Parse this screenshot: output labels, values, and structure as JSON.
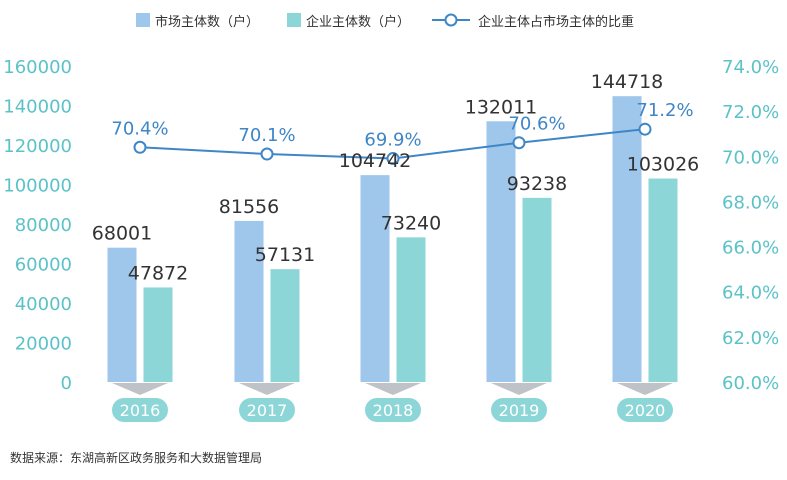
{
  "colors": {
    "market_bar": "#9fc6eb",
    "enterprise_bar": "#8dd6d8",
    "ratio_line": "#3f86c6",
    "axis_text": "#5bc2c7",
    "label_text": "#333333",
    "year_pill": "#8dd6d8",
    "chevron": "#bfc3c7"
  },
  "legend": {
    "market": "市场主体数（户）",
    "enterprise": "企业主体数（户）",
    "ratio": "企业主体占市场主体的比重"
  },
  "source": "数据来源：东湖高新区政务服务和大数据管理局",
  "chart_data": {
    "type": "bar",
    "categories": [
      "2016",
      "2017",
      "2018",
      "2019",
      "2020"
    ],
    "series": [
      {
        "name": "市场主体数（户）",
        "type": "bar",
        "axis": "left",
        "values": [
          68001,
          81556,
          104742,
          132011,
          144718
        ],
        "labels": [
          "68001",
          "81556",
          "104742",
          "132011",
          "144718"
        ]
      },
      {
        "name": "企业主体数（户）",
        "type": "bar",
        "axis": "left",
        "values": [
          47872,
          57131,
          73240,
          93238,
          103026
        ],
        "labels": [
          "47872",
          "57131",
          "73240",
          "93238",
          "103026"
        ]
      },
      {
        "name": "企业主体占市场主体的比重",
        "type": "line",
        "axis": "right",
        "values": [
          70.4,
          70.1,
          69.9,
          70.6,
          71.2
        ],
        "labels": [
          "70.4%",
          "70.1%",
          "69.9%",
          "70.6%",
          "71.2%"
        ]
      }
    ],
    "left_axis": {
      "ylim": [
        0,
        160000
      ],
      "ticks": [
        0,
        20000,
        40000,
        60000,
        80000,
        100000,
        120000,
        140000,
        160000
      ],
      "tick_labels": [
        "0",
        "20000",
        "40000",
        "60000",
        "80000",
        "100000",
        "120000",
        "140000",
        "160000"
      ]
    },
    "right_axis": {
      "ylim": [
        60,
        74
      ],
      "ticks": [
        60,
        62,
        64,
        66,
        68,
        70,
        72,
        74
      ],
      "tick_labels": [
        "60.0%",
        "62.0%",
        "64.0%",
        "66.0%",
        "68.0%",
        "70.0%",
        "72.0%",
        "74.0%"
      ]
    },
    "grid": false,
    "legend_position": "top"
  }
}
